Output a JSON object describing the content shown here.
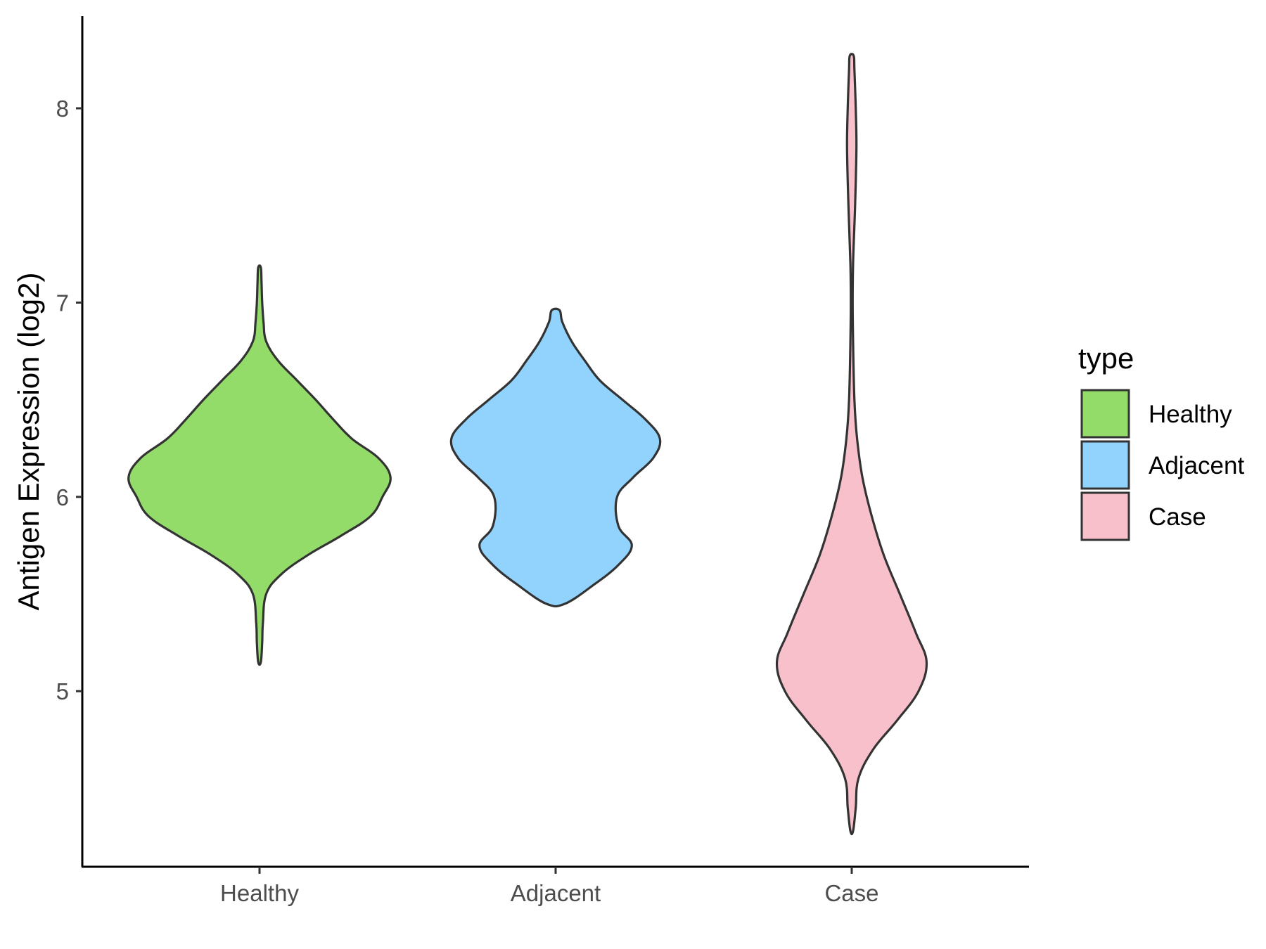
{
  "chart_data": {
    "type": "violin",
    "xlabel": "",
    "ylabel": "Antigen Expression (log2)",
    "categories": [
      "Healthy",
      "Adjacent",
      "Case"
    ],
    "ylim": [
      4.1,
      8.5
    ],
    "yticks": [
      5,
      6,
      7,
      8
    ],
    "grid": false,
    "legend": {
      "title": "type",
      "position": "right",
      "entries": [
        "Healthy",
        "Adjacent",
        "Case"
      ]
    },
    "colors": {
      "Healthy": "#93dc6a",
      "Adjacent": "#92d3fd",
      "Case": "#f7c0cb",
      "outline": "#333333"
    },
    "series": [
      {
        "category": "Healthy",
        "min": 5.15,
        "max": 7.18,
        "profile": [
          [
            5.15,
            0.01
          ],
          [
            5.25,
            0.02
          ],
          [
            5.35,
            0.025
          ],
          [
            5.5,
            0.05
          ],
          [
            5.6,
            0.16
          ],
          [
            5.7,
            0.36
          ],
          [
            5.8,
            0.61
          ],
          [
            5.9,
            0.83
          ],
          [
            6.0,
            0.92
          ],
          [
            6.1,
            0.98
          ],
          [
            6.2,
            0.89
          ],
          [
            6.3,
            0.69
          ],
          [
            6.4,
            0.55
          ],
          [
            6.5,
            0.42
          ],
          [
            6.6,
            0.28
          ],
          [
            6.7,
            0.14
          ],
          [
            6.8,
            0.05
          ],
          [
            6.9,
            0.03
          ],
          [
            7.0,
            0.02
          ],
          [
            7.1,
            0.015
          ],
          [
            7.18,
            0.01
          ]
        ]
      },
      {
        "category": "Adjacent",
        "min": 5.45,
        "max": 6.96,
        "profile": [
          [
            5.45,
            0.07
          ],
          [
            5.55,
            0.29
          ],
          [
            5.65,
            0.47
          ],
          [
            5.75,
            0.57
          ],
          [
            5.85,
            0.47
          ],
          [
            6.0,
            0.46
          ],
          [
            6.1,
            0.58
          ],
          [
            6.2,
            0.73
          ],
          [
            6.3,
            0.78
          ],
          [
            6.4,
            0.67
          ],
          [
            6.5,
            0.5
          ],
          [
            6.6,
            0.33
          ],
          [
            6.7,
            0.22
          ],
          [
            6.8,
            0.12
          ],
          [
            6.9,
            0.05
          ],
          [
            6.96,
            0.03
          ]
        ]
      },
      {
        "category": "Case",
        "min": 4.28,
        "max": 8.27,
        "profile": [
          [
            4.28,
            0.01
          ],
          [
            4.4,
            0.03
          ],
          [
            4.55,
            0.05
          ],
          [
            4.7,
            0.16
          ],
          [
            4.85,
            0.34
          ],
          [
            5.0,
            0.5
          ],
          [
            5.15,
            0.56
          ],
          [
            5.3,
            0.48
          ],
          [
            5.5,
            0.36
          ],
          [
            5.7,
            0.24
          ],
          [
            5.9,
            0.15
          ],
          [
            6.1,
            0.08
          ],
          [
            6.3,
            0.04
          ],
          [
            6.5,
            0.02
          ],
          [
            6.8,
            0.01
          ],
          [
            7.0,
            0.007
          ],
          [
            7.2,
            0.01
          ],
          [
            7.5,
            0.025
          ],
          [
            7.8,
            0.035
          ],
          [
            8.0,
            0.03
          ],
          [
            8.2,
            0.02
          ],
          [
            8.27,
            0.015
          ]
        ]
      }
    ]
  }
}
